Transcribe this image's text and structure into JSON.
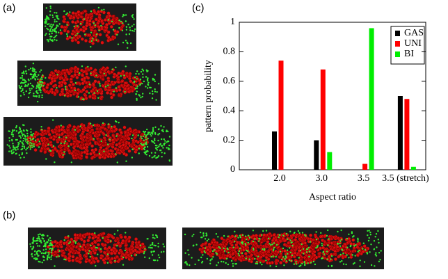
{
  "panel_labels": [
    "(a)",
    "(b)",
    "(c)"
  ],
  "chart_data": {
    "type": "bar",
    "xlabel": "Aspect ratio",
    "ylabel": "pattern probability",
    "categories": [
      "2.0",
      "3.0",
      "3.5",
      "3.5 (stretch)"
    ],
    "series": [
      {
        "name": "GAS",
        "color": "#000000",
        "values": [
          0.26,
          0.2,
          0,
          0.5
        ]
      },
      {
        "name": "UNI",
        "color": "#ff0000",
        "values": [
          0.74,
          0.68,
          0.04,
          0.48
        ]
      },
      {
        "name": "BI",
        "color": "#00ee00",
        "values": [
          0,
          0.12,
          0.96,
          0.02
        ]
      }
    ],
    "ylim": [
      0,
      1
    ],
    "yticks": [
      0,
      0.2,
      0.4,
      0.6,
      0.8,
      1
    ],
    "grid": false,
    "legend": "upper right"
  }
}
